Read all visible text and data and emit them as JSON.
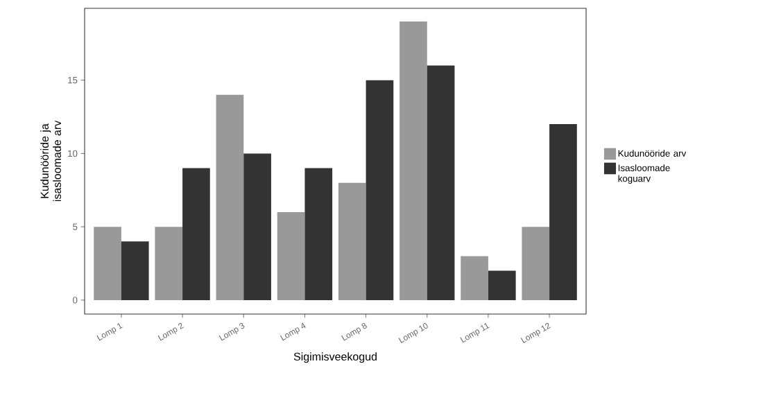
{
  "chart_data": {
    "type": "bar",
    "xlabel": "Sigimisveekogud",
    "ylabel": "Kudunööride ja isasloomade arv",
    "categories": [
      "Lomp 1",
      "Lomp 2",
      "Lomp 3",
      "Lomp 4",
      "Lomp 8",
      "Lomp 10",
      "Lomp 11",
      "Lomp 12"
    ],
    "series": [
      {
        "name": "Kudunööride arv",
        "color": "#999999",
        "values": [
          5,
          5,
          14,
          6,
          8,
          19,
          3,
          5
        ]
      },
      {
        "name": "Isasloomade koguarv",
        "color": "#333333",
        "values": [
          4,
          9,
          10,
          9,
          15,
          16,
          2,
          12
        ]
      }
    ],
    "ylim": [
      -0.95,
      19.9
    ],
    "yticks": [
      0,
      5,
      10,
      15
    ],
    "grid": false,
    "legend": "right"
  }
}
